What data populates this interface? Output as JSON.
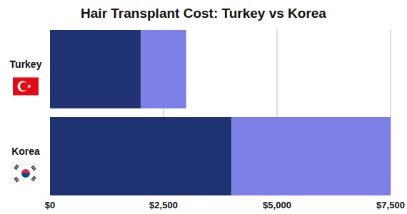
{
  "chart_data": {
    "type": "bar",
    "title": "Hair Transplant Cost: Turkey vs Korea",
    "orientation": "horizontal",
    "stacked": true,
    "grid": true,
    "categories": [
      "Turkey",
      "Korea"
    ],
    "series": [
      {
        "color": "#1f3373",
        "values": [
          2000,
          4000
        ]
      },
      {
        "color": "#7c7fe6",
        "values": [
          1000,
          3500
        ]
      }
    ],
    "xlim": [
      0,
      7500
    ],
    "xticks": [
      {
        "value": 0,
        "label": "$0"
      },
      {
        "value": 2500,
        "label": "$2,500"
      },
      {
        "value": 5000,
        "label": "$5,000"
      },
      {
        "value": 7500,
        "label": "$7,500"
      }
    ]
  }
}
